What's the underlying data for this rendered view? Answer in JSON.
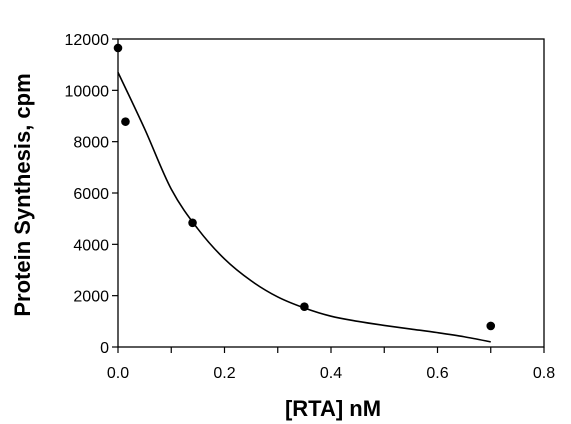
{
  "chart_data": {
    "type": "scatter",
    "title": "",
    "xlabel": "[RTA] nM",
    "ylabel": "Protein Synthesis, cpm",
    "xlim": [
      0.0,
      0.8
    ],
    "ylim": [
      0,
      12000
    ],
    "x_ticks": [
      0.0,
      0.2,
      0.4,
      0.6,
      0.8
    ],
    "x_tick_labels": [
      "0.0",
      "0.2",
      "0.4",
      "0.6",
      "0.8"
    ],
    "y_ticks": [
      0,
      2000,
      4000,
      6000,
      8000,
      10000,
      12000
    ],
    "y_tick_labels": [
      "0",
      "2000",
      "4000",
      "6000",
      "8000",
      "10000",
      "12000"
    ],
    "grid": false,
    "legend": "none",
    "series": [
      {
        "kind": "points",
        "x": [
          0.0,
          0.014,
          0.14,
          0.35,
          0.7
        ],
        "y": [
          11650,
          8780,
          4840,
          1570,
          820
        ]
      },
      {
        "kind": "fitted-curve",
        "x": [
          0.0,
          0.05,
          0.1,
          0.15,
          0.2,
          0.25,
          0.3,
          0.35,
          0.4,
          0.45,
          0.5,
          0.55,
          0.6,
          0.65,
          0.7
        ],
        "y": [
          10700,
          8500,
          6150,
          4600,
          3430,
          2580,
          1950,
          1520,
          1200,
          1000,
          840,
          700,
          560,
          400,
          200
        ]
      }
    ],
    "colors": {
      "axis": "#000000",
      "points": "#000000",
      "curve": "#000000"
    }
  }
}
